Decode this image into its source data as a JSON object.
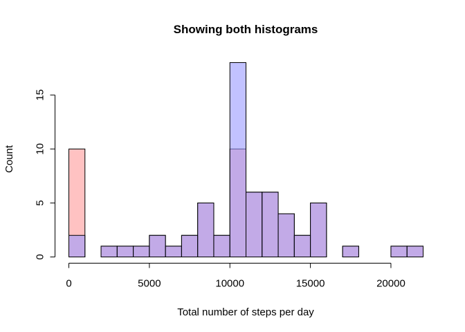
{
  "chart_data": {
    "type": "bar",
    "title": "Showing both histograms",
    "xlabel": "Total number of steps per day",
    "ylabel": "Count",
    "xlim": [
      0,
      22000
    ],
    "ylim": [
      0,
      18
    ],
    "x_ticks": [
      0,
      5000,
      10000,
      15000,
      20000
    ],
    "y_ticks": [
      0,
      5,
      10,
      15
    ],
    "bin_width": 1000,
    "bin_starts": [
      0,
      1000,
      2000,
      3000,
      4000,
      5000,
      6000,
      7000,
      8000,
      9000,
      10000,
      11000,
      12000,
      13000,
      14000,
      15000,
      16000,
      17000,
      18000,
      19000,
      20000,
      21000
    ],
    "series": [
      {
        "color": "#ff9999",
        "opacity": 0.6,
        "values": [
          10,
          0,
          1,
          1,
          1,
          2,
          1,
          2,
          5,
          2,
          10,
          6,
          6,
          4,
          2,
          5,
          0,
          1,
          0,
          0,
          1,
          1
        ]
      },
      {
        "color": "#9999ff",
        "opacity": 0.6,
        "values": [
          2,
          0,
          1,
          1,
          1,
          2,
          1,
          2,
          5,
          2,
          18,
          6,
          6,
          4,
          2,
          5,
          0,
          1,
          0,
          0,
          1,
          1
        ]
      }
    ],
    "grid": false,
    "legend": "none"
  }
}
